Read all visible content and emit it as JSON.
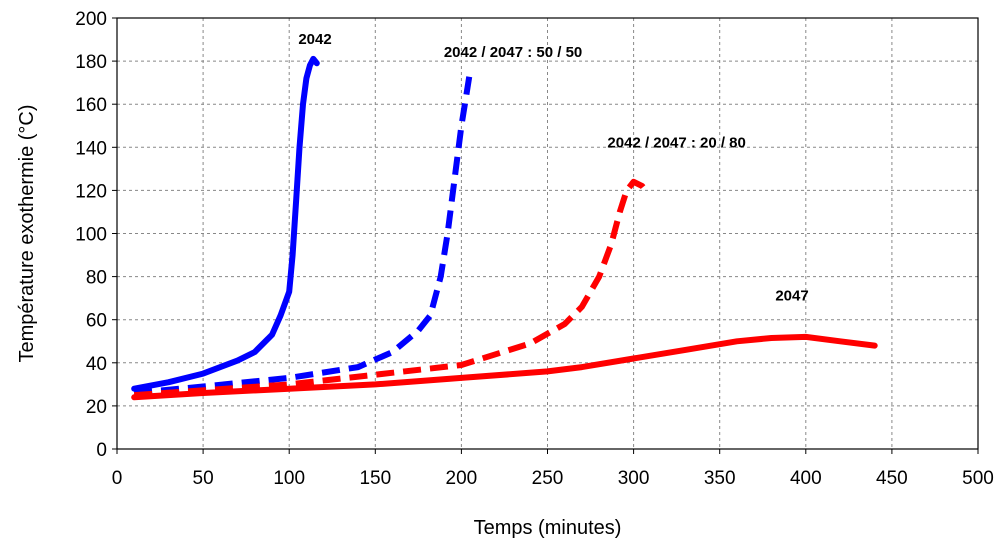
{
  "chart_data": {
    "type": "line",
    "xlabel": "Temps (minutes)",
    "ylabel": "Température exothermie (°C)",
    "xlim": [
      0,
      500
    ],
    "ylim": [
      0,
      200
    ],
    "xticks": [
      0,
      50,
      100,
      150,
      200,
      250,
      300,
      350,
      400,
      450,
      500
    ],
    "yticks": [
      0,
      20,
      40,
      60,
      80,
      100,
      120,
      140,
      160,
      180,
      200
    ],
    "grid": true,
    "series": [
      {
        "name": "2042",
        "color": "#0000ff",
        "style": "solid",
        "points": [
          [
            10,
            28
          ],
          [
            30,
            31
          ],
          [
            50,
            35
          ],
          [
            70,
            41
          ],
          [
            80,
            45
          ],
          [
            90,
            53
          ],
          [
            95,
            62
          ],
          [
            100,
            73
          ],
          [
            102,
            90
          ],
          [
            104,
            115
          ],
          [
            106,
            140
          ],
          [
            108,
            160
          ],
          [
            110,
            172
          ],
          [
            112,
            178
          ],
          [
            114,
            181
          ],
          [
            116,
            179
          ]
        ]
      },
      {
        "name": "2042 / 2047 : 50 / 50",
        "color": "#0000ff",
        "style": "dashed",
        "points": [
          [
            10,
            26
          ],
          [
            50,
            29
          ],
          [
            100,
            33
          ],
          [
            140,
            38
          ],
          [
            160,
            45
          ],
          [
            175,
            55
          ],
          [
            182,
            62
          ],
          [
            188,
            80
          ],
          [
            192,
            100
          ],
          [
            196,
            125
          ],
          [
            200,
            150
          ],
          [
            203,
            165
          ],
          [
            205,
            175
          ]
        ]
      },
      {
        "name": "2042 / 2047 : 20 / 80",
        "color": "#ff0000",
        "style": "dashed",
        "points": [
          [
            10,
            25
          ],
          [
            100,
            30
          ],
          [
            200,
            39
          ],
          [
            240,
            49
          ],
          [
            260,
            58
          ],
          [
            270,
            66
          ],
          [
            280,
            80
          ],
          [
            287,
            95
          ],
          [
            292,
            110
          ],
          [
            296,
            120
          ],
          [
            300,
            124
          ],
          [
            305,
            122
          ],
          [
            308,
            119
          ]
        ]
      },
      {
        "name": "2047",
        "color": "#ff0000",
        "style": "solid",
        "points": [
          [
            10,
            24
          ],
          [
            50,
            26
          ],
          [
            100,
            28
          ],
          [
            150,
            30
          ],
          [
            200,
            33
          ],
          [
            250,
            36
          ],
          [
            270,
            38
          ],
          [
            300,
            42
          ],
          [
            330,
            46
          ],
          [
            360,
            50
          ],
          [
            380,
            51.5
          ],
          [
            400,
            52
          ],
          [
            420,
            50
          ],
          [
            440,
            48
          ]
        ]
      }
    ],
    "annotations": [
      {
        "text": "2042",
        "x": 115,
        "y": 188
      },
      {
        "text": "2042 / 2047  : 50 / 50",
        "x": 230,
        "y": 182
      },
      {
        "text": "2042 / 2047  : 20 / 80",
        "x": 325,
        "y": 140
      },
      {
        "text": "2047",
        "x": 392,
        "y": 69
      }
    ]
  }
}
